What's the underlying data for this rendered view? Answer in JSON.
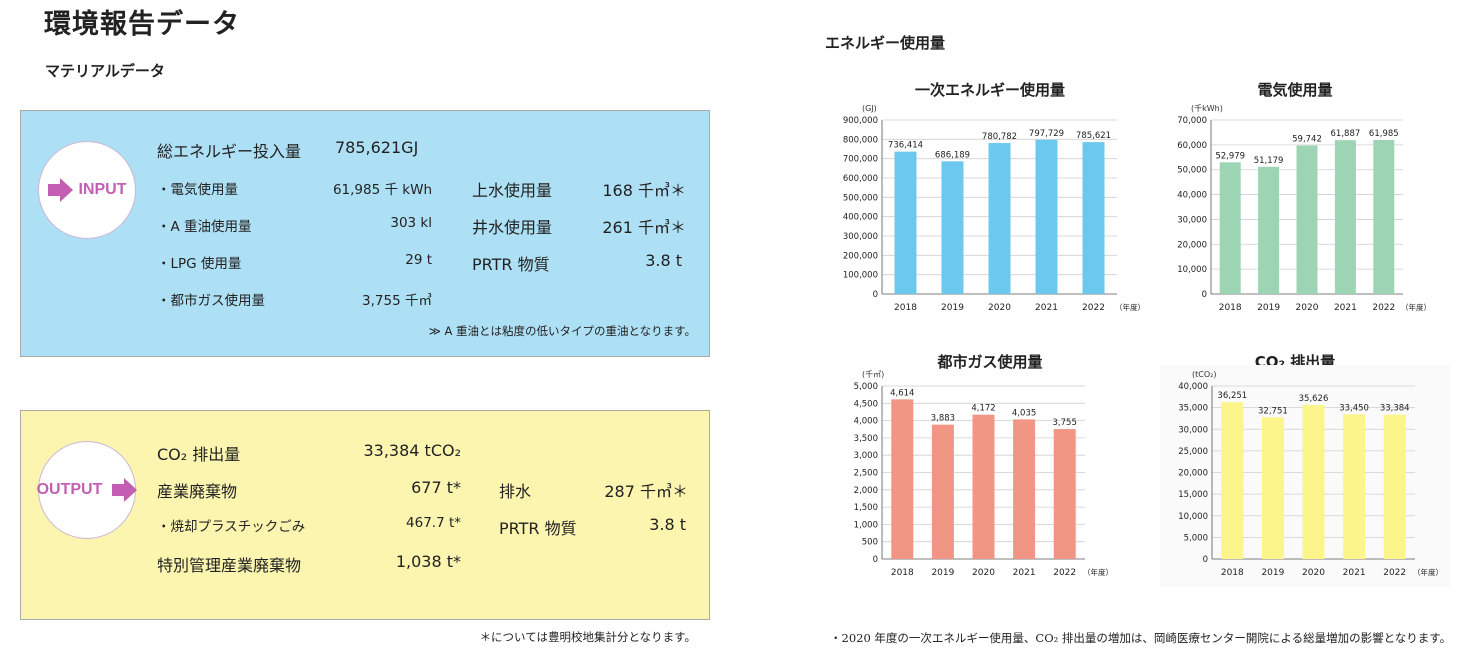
{
  "page": {
    "title": "環境報告データ",
    "material_title": "マテリアルデータ",
    "energy_section": "エネルギー使用量",
    "footer_note": "・2020 年度の一次エネルギー使用量、CO₂ 排出量の増加は、岡崎医療センター開院による総量増加の影響となります。",
    "asterisk_note": "＊については豊明校地集計分となります。"
  },
  "input": {
    "label": "INPUT",
    "total_label": "総エネルギー投入量",
    "total_value": "785,621GJ",
    "items_left": [
      {
        "label": "・電気使用量",
        "value": "61,985 千 kWh"
      },
      {
        "label": "・A 重油使用量",
        "value": "303 kl"
      },
      {
        "label": "・LPG 使用量",
        "value": "29 t"
      },
      {
        "label": "・都市ガス使用量",
        "value": "3,755 千㎥"
      }
    ],
    "items_right": [
      {
        "label": "上水使用量",
        "value": "168 千㎥＊"
      },
      {
        "label": "井水使用量",
        "value": "261 千㎥＊"
      },
      {
        "label": "PRTR 物質",
        "value": "3.8 t"
      }
    ],
    "note": "≫ A 重油とは粘度の低いタイプの重油となります。"
  },
  "output": {
    "label": "OUTPUT",
    "items_left": [
      {
        "label": "CO₂ 排出量",
        "value": "33,384 tCO₂"
      },
      {
        "label": "産業廃棄物",
        "value": "677 t*"
      },
      {
        "label": "・焼却プラスチックごみ",
        "value": "467.7 t*"
      },
      {
        "label": "特別管理産業廃棄物",
        "value": "1,038 t*"
      }
    ],
    "items_right": [
      {
        "label": "排水",
        "value": "287 千㎥＊"
      },
      {
        "label": "PRTR 物質",
        "value": "3.8 t"
      }
    ]
  },
  "chart_data": [
    {
      "type": "bar",
      "title": "一次エネルギー使用量",
      "unit": "(GJ)",
      "xunit": "（年度）",
      "categories": [
        "2018",
        "2019",
        "2020",
        "2021",
        "2022"
      ],
      "values": [
        736414,
        686189,
        780782,
        797729,
        785621
      ],
      "labels": [
        "736,414",
        "686,189",
        "780,782",
        "797,729",
        "785,621"
      ],
      "ylim": [
        0,
        900000
      ],
      "yticks": [
        "0",
        "100,000",
        "200,000",
        "300,000",
        "400,000",
        "500,000",
        "600,000",
        "700,000",
        "800,000",
        "900,000"
      ],
      "color": "#6cc8ef"
    },
    {
      "type": "bar",
      "title": "電気使用量",
      "unit": "(千kWh)",
      "xunit": "（年度）",
      "categories": [
        "2018",
        "2019",
        "2020",
        "2021",
        "2022"
      ],
      "values": [
        52979,
        51179,
        59742,
        61887,
        61985
      ],
      "labels": [
        "52,979",
        "51,179",
        "59,742",
        "61,887",
        "61,985"
      ],
      "ylim": [
        0,
        70000
      ],
      "yticks": [
        "0",
        "10,000",
        "20,000",
        "30,000",
        "40,000",
        "50,000",
        "60,000",
        "70,000"
      ],
      "color": "#9dd5b4"
    },
    {
      "type": "bar",
      "title": "都市ガス使用量",
      "unit": "(千㎥)",
      "xunit": "（年度）",
      "categories": [
        "2018",
        "2019",
        "2020",
        "2021",
        "2022"
      ],
      "values": [
        4614,
        3883,
        4172,
        4035,
        3755
      ],
      "labels": [
        "4,614",
        "3,883",
        "4,172",
        "4,035",
        "3,755"
      ],
      "ylim": [
        0,
        5000
      ],
      "yticks": [
        "0",
        "500",
        "1,000",
        "1,500",
        "2,000",
        "2,500",
        "3,000",
        "3,500",
        "4,000",
        "4,500",
        "5,000"
      ],
      "color": "#f19584"
    },
    {
      "type": "bar",
      "title": "CO₂ 排出量",
      "unit": "(tCO₂)",
      "xunit": "（年度）",
      "categories": [
        "2018",
        "2019",
        "2020",
        "2021",
        "2022"
      ],
      "values": [
        36251,
        32751,
        35626,
        33450,
        33384
      ],
      "labels": [
        "36,251",
        "32,751",
        "35,626",
        "33,450",
        "33,384"
      ],
      "ylim": [
        0,
        40000
      ],
      "yticks": [
        "0",
        "5,000",
        "10,000",
        "15,000",
        "20,000",
        "25,000",
        "30,000",
        "35,000",
        "40,000"
      ],
      "color": "#fbf58c"
    }
  ]
}
